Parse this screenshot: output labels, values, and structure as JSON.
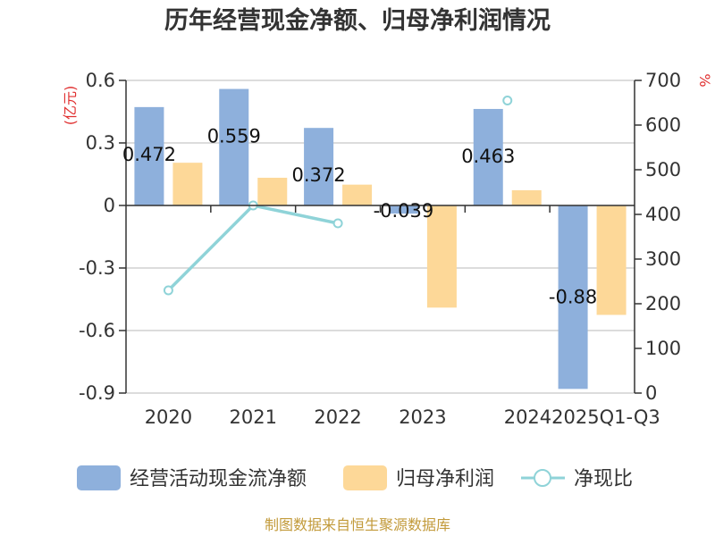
{
  "chart_data": {
    "type": "bar",
    "title": "历年经营现金净额、归母净利润情况",
    "categories": [
      "2020",
      "2021",
      "2022",
      "2023",
      "2024",
      "2025Q1-Q3"
    ],
    "series": [
      {
        "name": "经营活动现金流净额",
        "type": "bar",
        "axis": "left",
        "color": "#8eb0dc",
        "values": [
          0.472,
          0.559,
          0.372,
          -0.039,
          0.463,
          -0.88
        ],
        "labels": [
          "0.472",
          "0.559",
          "0.372",
          "-0.039",
          "0.463",
          "-0.88"
        ]
      },
      {
        "name": "归母净利润",
        "type": "bar",
        "axis": "left",
        "color": "#fdd898",
        "values": [
          0.205,
          0.133,
          0.1,
          -0.49,
          0.073,
          -0.525
        ]
      },
      {
        "name": "净现比",
        "type": "line",
        "axis": "right",
        "color": "#8fd3d8",
        "values": [
          230,
          420,
          380,
          null,
          655,
          null
        ]
      }
    ],
    "y_left": {
      "unit": "(亿元)",
      "ylim": [
        -0.9,
        0.6
      ],
      "ticks": [
        "0.6",
        "0.3",
        "0",
        "-0.3",
        "-0.6",
        "-0.9"
      ],
      "tick_values": [
        0.6,
        0.3,
        0,
        -0.3,
        -0.6,
        -0.9
      ]
    },
    "y_right": {
      "unit": "%",
      "ylim": [
        0,
        700
      ],
      "ticks": [
        "700",
        "600",
        "500",
        "400",
        "300",
        "200",
        "100",
        "0"
      ],
      "tick_values": [
        700,
        600,
        500,
        400,
        300,
        200,
        100,
        0
      ]
    },
    "grid": true,
    "legend_position": "bottom",
    "unit_color": "#e03030"
  },
  "source": {
    "text": "制图数据来自恒生聚源数据库",
    "color": "#c29a3a"
  }
}
